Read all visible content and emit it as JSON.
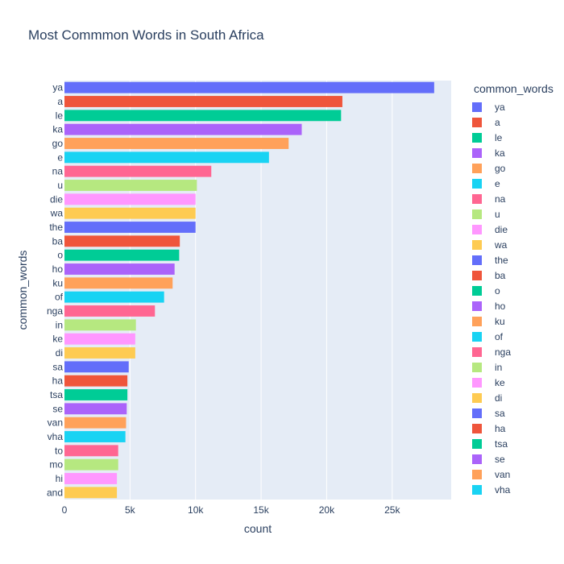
{
  "chart_data": {
    "type": "bar",
    "orientation": "horizontal",
    "title": "Most Commmon Words in South Africa",
    "xlabel": "count",
    "ylabel": "common_words",
    "xlim": [
      0,
      29500
    ],
    "x_ticks": [
      0,
      5000,
      10000,
      15000,
      20000,
      25000
    ],
    "x_tick_labels": [
      "0",
      "5k",
      "10k",
      "15k",
      "20k",
      "25k"
    ],
    "grid": true,
    "legend_title": "common_words",
    "legend_position": "right",
    "categories": [
      "ya",
      "a",
      "le",
      "ka",
      "go",
      "e",
      "na",
      "u",
      "die",
      "wa",
      "the",
      "ba",
      "o",
      "ho",
      "ku",
      "of",
      "nga",
      "in",
      "ke",
      "di",
      "sa",
      "ha",
      "tsa",
      "se",
      "van",
      "vha",
      "to",
      "mo",
      "hi",
      "and"
    ],
    "values": [
      28200,
      21200,
      21100,
      18100,
      17100,
      15600,
      11200,
      10100,
      10000,
      10000,
      10000,
      8800,
      8750,
      8400,
      8250,
      7600,
      6900,
      5450,
      5400,
      5400,
      4900,
      4800,
      4800,
      4750,
      4700,
      4650,
      4100,
      4100,
      4000,
      4000
    ],
    "colors": [
      "#636efa",
      "#EF553B",
      "#00cc96",
      "#ab63fa",
      "#FFA15A",
      "#19d3f3",
      "#FF6692",
      "#B6E880",
      "#FF97FF",
      "#FECB52",
      "#636efa",
      "#EF553B",
      "#00cc96",
      "#ab63fa",
      "#FFA15A",
      "#19d3f3",
      "#FF6692",
      "#B6E880",
      "#FF97FF",
      "#FECB52",
      "#636efa",
      "#EF553B",
      "#00cc96",
      "#ab63fa",
      "#FFA15A",
      "#19d3f3",
      "#FF6692",
      "#B6E880",
      "#FF97FF",
      "#FECB52"
    ],
    "legend_entries": [
      "ya",
      "a",
      "le",
      "ka",
      "go",
      "e",
      "na",
      "u",
      "die",
      "wa",
      "the",
      "ba",
      "o",
      "ho",
      "ku",
      "of",
      "nga",
      "in",
      "ke",
      "di",
      "sa",
      "ha",
      "tsa",
      "se",
      "van",
      "vha"
    ]
  }
}
